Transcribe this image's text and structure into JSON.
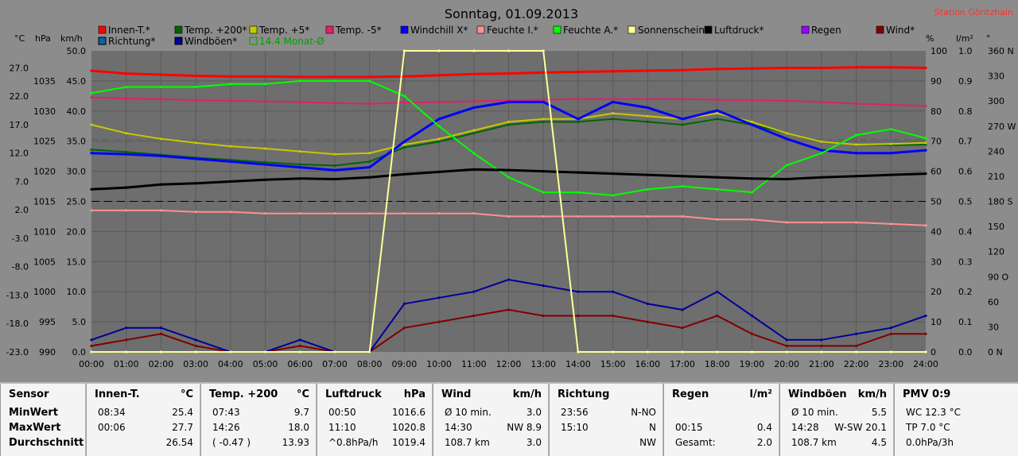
{
  "title": "Sonntag, 01.09.2013",
  "station": "Station Göritzhain",
  "legend_row1": [
    "Innen-T.*",
    "Temp. +200*",
    "Temp. +5*",
    "Temp. -5*",
    "Windchill X*",
    "Feuchte I.*",
    "Feuchte A.*",
    "Sonnenschein",
    "Luftdruck*",
    "Regen",
    "Wind*"
  ],
  "legend_row2": [
    "Richtung*",
    "Windböen*",
    "14.4 Monat-Ø"
  ],
  "colors": {
    "innen": "#ff0000",
    "temp200": "#006400",
    "temp5": "#c8c800",
    "tempm5": "#e0206a",
    "windchill": "#0000ff",
    "feuchteI": "#ff9090",
    "feuchteA": "#00ff00",
    "sonne": "#ffff99",
    "luftdruck": "#000000",
    "regen": "#9a00ff",
    "wind": "#800000",
    "richtung": "#1060a0",
    "boeen": "#000099",
    "monat": "#00a000"
  },
  "axis_units": {
    "c": "°C",
    "hpa": "hPa",
    "kmh": "km/h",
    "pct": "%",
    "lm2": "l/m²",
    "deg": "°"
  },
  "axis_c": [
    "27.0",
    "22.0",
    "17.0",
    "12.0",
    "7.0",
    "2.0",
    "-3.0",
    "-8.0",
    "-13.0",
    "-18.0",
    "-23.0"
  ],
  "axis_hpa": [
    "1035",
    "1030",
    "1025",
    "1020",
    "1015",
    "1010",
    "1005",
    "1000",
    "995",
    "990"
  ],
  "axis_kmh": [
    "50.0",
    "45.0",
    "40.0",
    "35.0",
    "30.0",
    "25.0",
    "20.0",
    "15.0",
    "10.0",
    "5.0",
    "0.0"
  ],
  "axis_pct": [
    "100",
    "90",
    "80",
    "70",
    "60",
    "50",
    "40",
    "30",
    "20",
    "10",
    "0"
  ],
  "axis_lm2": [
    "1.0",
    "0.9",
    "0.8",
    "0.7",
    "0.6",
    "0.5",
    "0.4",
    "0.3",
    "0.2",
    "0.1",
    "0.0"
  ],
  "axis_deg": [
    "360 N",
    "330",
    "300",
    "270 W",
    "240",
    "210",
    "180 S",
    "150",
    "120",
    "90 O",
    "60",
    "30",
    "0 N"
  ],
  "axis_time": [
    "00:00",
    "01:00",
    "02:00",
    "03:00",
    "04:00",
    "05:00",
    "06:00",
    "07:00",
    "08:00",
    "09:00",
    "10:00",
    "11:00",
    "12:00",
    "13:00",
    "14:00",
    "15:00",
    "16:00",
    "17:00",
    "18:00",
    "19:00",
    "20:00",
    "21:00",
    "22:00",
    "23:00",
    "24:00"
  ],
  "chart_data": {
    "type": "line",
    "title": "Sonntag, 01.09.2013",
    "x": [
      0,
      1,
      2,
      3,
      4,
      5,
      6,
      7,
      8,
      9,
      10,
      11,
      12,
      13,
      14,
      15,
      16,
      17,
      18,
      19,
      20,
      21,
      22,
      23,
      24
    ],
    "xlabel": "",
    "ylim_c": [
      -23,
      30
    ],
    "ylim_hpa": [
      990,
      1040
    ],
    "ylim_kmh": [
      0,
      50
    ],
    "ylim_pct": [
      0,
      100
    ],
    "series": [
      {
        "name": "Innen-T.*",
        "axis": "c",
        "values": [
          26.5,
          26.0,
          25.8,
          25.6,
          25.5,
          25.5,
          25.4,
          25.4,
          25.4,
          25.5,
          25.7,
          25.9,
          26.0,
          26.2,
          26.3,
          26.4,
          26.5,
          26.6,
          26.8,
          26.9,
          27.0,
          27.0,
          27.1,
          27.1,
          27.0
        ]
      },
      {
        "name": "Temp. +200*",
        "axis": "c",
        "values": [
          12.6,
          12.2,
          11.7,
          11.2,
          10.8,
          10.4,
          10.0,
          9.8,
          10.5,
          13.0,
          14.0,
          15.5,
          17.0,
          17.5,
          17.5,
          18.0,
          17.5,
          17.0,
          18.0,
          17.0,
          15.5,
          14.0,
          13.5,
          13.4,
          13.5
        ]
      },
      {
        "name": "Temp. +5*",
        "axis": "c",
        "values": [
          17.0,
          15.5,
          14.5,
          13.8,
          13.2,
          12.8,
          12.3,
          11.8,
          12.0,
          13.5,
          14.5,
          16.0,
          17.5,
          18.0,
          18.0,
          19.0,
          18.5,
          18.0,
          19.0,
          17.5,
          15.5,
          14.0,
          13.5,
          13.6,
          13.8
        ]
      },
      {
        "name": "Temp. -5*",
        "axis": "c",
        "values": [
          21.8,
          21.6,
          21.5,
          21.3,
          21.2,
          21.1,
          21.0,
          20.8,
          20.7,
          20.9,
          21.0,
          21.1,
          21.3,
          21.4,
          21.5,
          21.5,
          21.5,
          21.5,
          21.4,
          21.3,
          21.2,
          21.0,
          20.7,
          20.5,
          20.3
        ]
      },
      {
        "name": "Windchill X*",
        "axis": "c",
        "values": [
          12.0,
          11.8,
          11.5,
          11.0,
          10.5,
          10.0,
          9.5,
          9.0,
          9.5,
          14.0,
          18.0,
          20.0,
          21.0,
          21.0,
          18.0,
          21.0,
          20.0,
          18.0,
          19.5,
          17.0,
          14.5,
          12.5,
          12.0,
          12.0,
          12.5
        ]
      },
      {
        "name": "Feuchte I.*",
        "axis": "pct",
        "values": [
          47,
          47,
          47,
          46.5,
          46.5,
          46,
          46,
          46,
          46,
          46,
          46,
          46,
          45,
          45,
          45,
          45,
          45,
          45,
          44,
          44,
          43,
          43,
          43,
          42.5,
          42
        ]
      },
      {
        "name": "Feuchte A.*",
        "axis": "pct",
        "values": [
          86,
          88,
          88,
          88,
          89,
          89,
          90,
          90,
          90,
          85,
          75,
          66,
          58,
          53,
          53,
          52,
          54,
          55,
          54,
          53,
          62,
          66,
          72,
          74,
          71
        ]
      },
      {
        "name": "Luftdruck*",
        "axis": "hpa",
        "values": [
          1017.0,
          1017.3,
          1017.8,
          1018.0,
          1018.3,
          1018.6,
          1018.8,
          1018.7,
          1019.0,
          1019.5,
          1019.9,
          1020.3,
          1020.2,
          1020.0,
          1019.8,
          1019.6,
          1019.4,
          1019.2,
          1019.0,
          1018.8,
          1018.7,
          1019.0,
          1019.2,
          1019.4,
          1019.6
        ]
      },
      {
        "name": "Wind*",
        "axis": "kmh",
        "values": [
          1,
          2,
          3,
          1,
          0,
          0,
          1,
          0,
          0,
          4,
          5,
          6,
          7,
          6,
          6,
          6,
          5,
          4,
          6,
          3,
          1,
          1,
          1,
          3,
          3
        ]
      },
      {
        "name": "Windböen*",
        "axis": "kmh",
        "values": [
          2,
          4,
          4,
          2,
          0,
          0,
          2,
          0,
          0,
          8,
          9,
          10,
          12,
          11,
          10,
          10,
          8,
          7,
          10,
          6,
          2,
          2,
          3,
          4,
          6
        ]
      },
      {
        "name": "Sonnenschein",
        "axis": "pct",
        "values": [
          0,
          0,
          0,
          0,
          0,
          0,
          0,
          0,
          0,
          100,
          100,
          100,
          100,
          100,
          0,
          0,
          0,
          0,
          0,
          0,
          0,
          0,
          0,
          0,
          0
        ]
      }
    ]
  },
  "table": [
    {
      "head": "Sensor",
      "unit": "",
      "rows": [
        {
          "a": "MinWert",
          "b": ""
        },
        {
          "a": "MaxWert",
          "b": ""
        },
        {
          "a": "Durchschnitt",
          "b": ""
        }
      ]
    },
    {
      "head": "Innen-T.",
      "unit": "°C",
      "rows": [
        {
          "a": "08:34",
          "b": "25.4"
        },
        {
          "a": "00:06",
          "b": "27.7"
        },
        {
          "a": "",
          "b": "26.54"
        }
      ]
    },
    {
      "head": "Temp. +200",
      "unit": "°C",
      "rows": [
        {
          "a": "07:43",
          "b": "9.7"
        },
        {
          "a": "14:26",
          "b": "18.0"
        },
        {
          "a": "( -0.47 )",
          "b": "13.93"
        }
      ]
    },
    {
      "head": "Luftdruck",
      "unit": "hPa",
      "rows": [
        {
          "a": "00:50",
          "b": "1016.6"
        },
        {
          "a": "11:10",
          "b": "1020.8"
        },
        {
          "a": "^0.8hPa/h",
          "b": "1019.4"
        }
      ]
    },
    {
      "head": "Wind",
      "unit": "km/h",
      "rows": [
        {
          "a": "Ø 10 min.",
          "b": "3.0"
        },
        {
          "a": "14:30",
          "b": "NW 8.9"
        },
        {
          "a": "108.7 km",
          "b": "3.0"
        }
      ]
    },
    {
      "head": "Richtung",
      "unit": "",
      "rows": [
        {
          "a": "23:56",
          "b": "N-NO"
        },
        {
          "a": "15:10",
          "b": "N"
        },
        {
          "a": "",
          "b": "NW"
        }
      ]
    },
    {
      "head": "Regen",
      "unit": "l/m²",
      "rows": [
        {
          "a": "",
          "b": ""
        },
        {
          "a": "00:15",
          "b": "0.4"
        },
        {
          "a": "Gesamt:",
          "b": "2.0"
        }
      ]
    },
    {
      "head": "Windböen",
      "unit": "km/h",
      "rows": [
        {
          "a": "Ø 10 min.",
          "b": "5.5"
        },
        {
          "a": "14:28",
          "b": "W-SW 20.1"
        },
        {
          "a": "108.7 km",
          "b": "4.5"
        }
      ]
    },
    {
      "head": "PMV 0:9",
      "unit": "",
      "rows": [
        {
          "a": "WC 12.3 °C",
          "b": ""
        },
        {
          "a": "TP 7.0 °C",
          "b": ""
        },
        {
          "a": "0.0hPa/3h",
          "b": ""
        }
      ]
    }
  ]
}
